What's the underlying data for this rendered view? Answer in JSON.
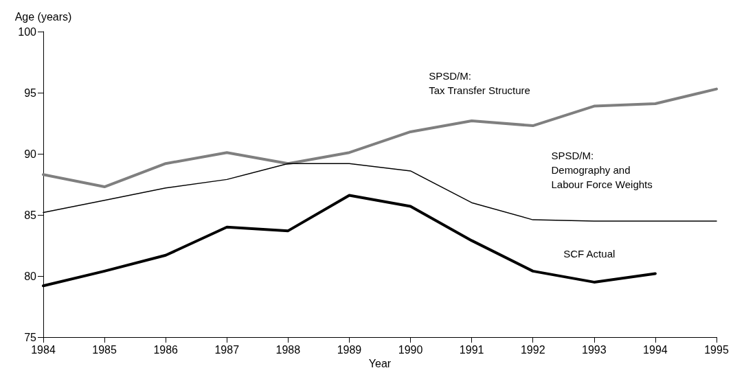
{
  "chart_data": {
    "type": "line",
    "xlabel": "Year",
    "ylabel": "Age (years)",
    "x": [
      1984,
      1985,
      1986,
      1987,
      1988,
      1989,
      1990,
      1991,
      1992,
      1993,
      1994,
      1995
    ],
    "series": [
      {
        "name": "SPSD/M:\nTax Transfer Structure",
        "color": "#7f7f7f",
        "values": [
          88.3,
          87.3,
          89.2,
          90.1,
          89.2,
          90.1,
          91.8,
          92.7,
          92.3,
          93.9,
          94.1,
          95.3
        ]
      },
      {
        "name": "SPSD/M:\nDemography and\nLabour Force Weights",
        "color": "#000000",
        "values": [
          85.2,
          86.2,
          87.2,
          87.9,
          89.2,
          89.2,
          88.6,
          86.0,
          84.6,
          84.5,
          84.5,
          84.5
        ]
      },
      {
        "name": "SCF Actual",
        "color": "#000000",
        "values": [
          79.2,
          80.4,
          81.7,
          84.0,
          83.7,
          86.6,
          85.7,
          82.9,
          80.4,
          79.5,
          80.2,
          null
        ]
      }
    ],
    "xlim": [
      1984,
      1995
    ],
    "xticks": [
      1984,
      1985,
      1986,
      1987,
      1988,
      1989,
      1990,
      1991,
      1992,
      1993,
      1994,
      1995
    ],
    "ylim": [
      75,
      100
    ],
    "yticks": [
      75,
      80,
      85,
      90,
      95,
      100
    ],
    "grid": false,
    "legend": false,
    "marker": "none",
    "line_style": "solid"
  }
}
